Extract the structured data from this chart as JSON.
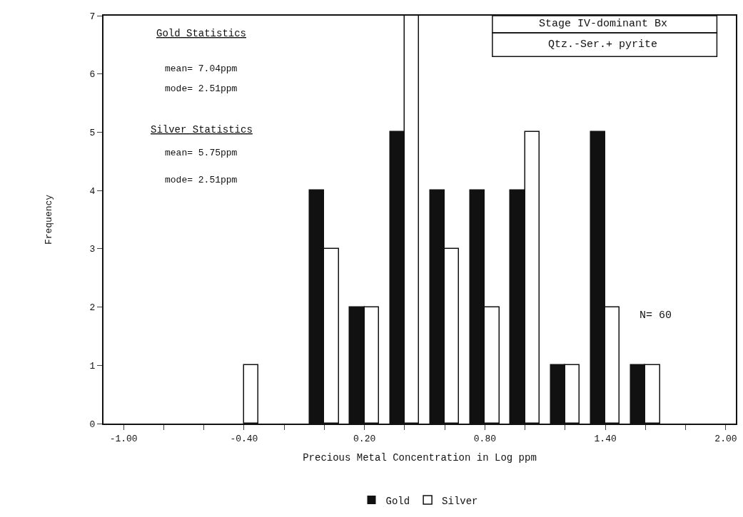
{
  "chart_data": {
    "type": "bar",
    "xlabel": "Precious Metal Concentration in Log ppm",
    "ylabel": "Frequency",
    "x": [
      -0.4,
      -0.2,
      0.0,
      0.2,
      0.4,
      0.6,
      0.8,
      1.0,
      1.2,
      1.4,
      1.6
    ],
    "series": [
      {
        "name": "Gold",
        "color": "#111111",
        "values": [
          0,
          0,
          4,
          2,
          5,
          4,
          4,
          4,
          1,
          5,
          1
        ]
      },
      {
        "name": "Silver",
        "color": "#ffffff",
        "values": [
          1,
          0,
          3,
          2,
          7,
          3,
          2,
          5,
          1,
          2,
          1
        ]
      }
    ],
    "xlim": [
      -1.1,
      2.05
    ],
    "xticks": [
      {
        "value": -1.0,
        "label": "-1.00"
      },
      {
        "value": -0.8,
        "label": null
      },
      {
        "value": -0.6,
        "label": null
      },
      {
        "value": -0.4,
        "label": "-0.40"
      },
      {
        "value": -0.2,
        "label": null
      },
      {
        "value": 0.0,
        "label": null
      },
      {
        "value": 0.2,
        "label": "0.20"
      },
      {
        "value": 0.4,
        "label": null
      },
      {
        "value": 0.6,
        "label": null
      },
      {
        "value": 0.8,
        "label": "0.80"
      },
      {
        "value": 1.0,
        "label": null
      },
      {
        "value": 1.2,
        "label": null
      },
      {
        "value": 1.4,
        "label": "1.40"
      },
      {
        "value": 1.6,
        "label": null
      },
      {
        "value": 1.8,
        "label": null
      },
      {
        "value": 2.0,
        "label": "2.00"
      }
    ],
    "ylim": [
      0,
      7
    ],
    "yticks": [
      0,
      1,
      2,
      3,
      4,
      5,
      6,
      7
    ],
    "grid": false,
    "legend": "bottom",
    "annotations": [
      "Gold Statistics",
      "mean= 7.04ppm",
      "mode= 2.51ppm",
      "Silver Statistics",
      "mean= 5.75ppm",
      "mode= 2.51ppm",
      "Stage IV-dominant Bx",
      "Qtz.-Ser.+ pyrite",
      "N= 60"
    ]
  }
}
